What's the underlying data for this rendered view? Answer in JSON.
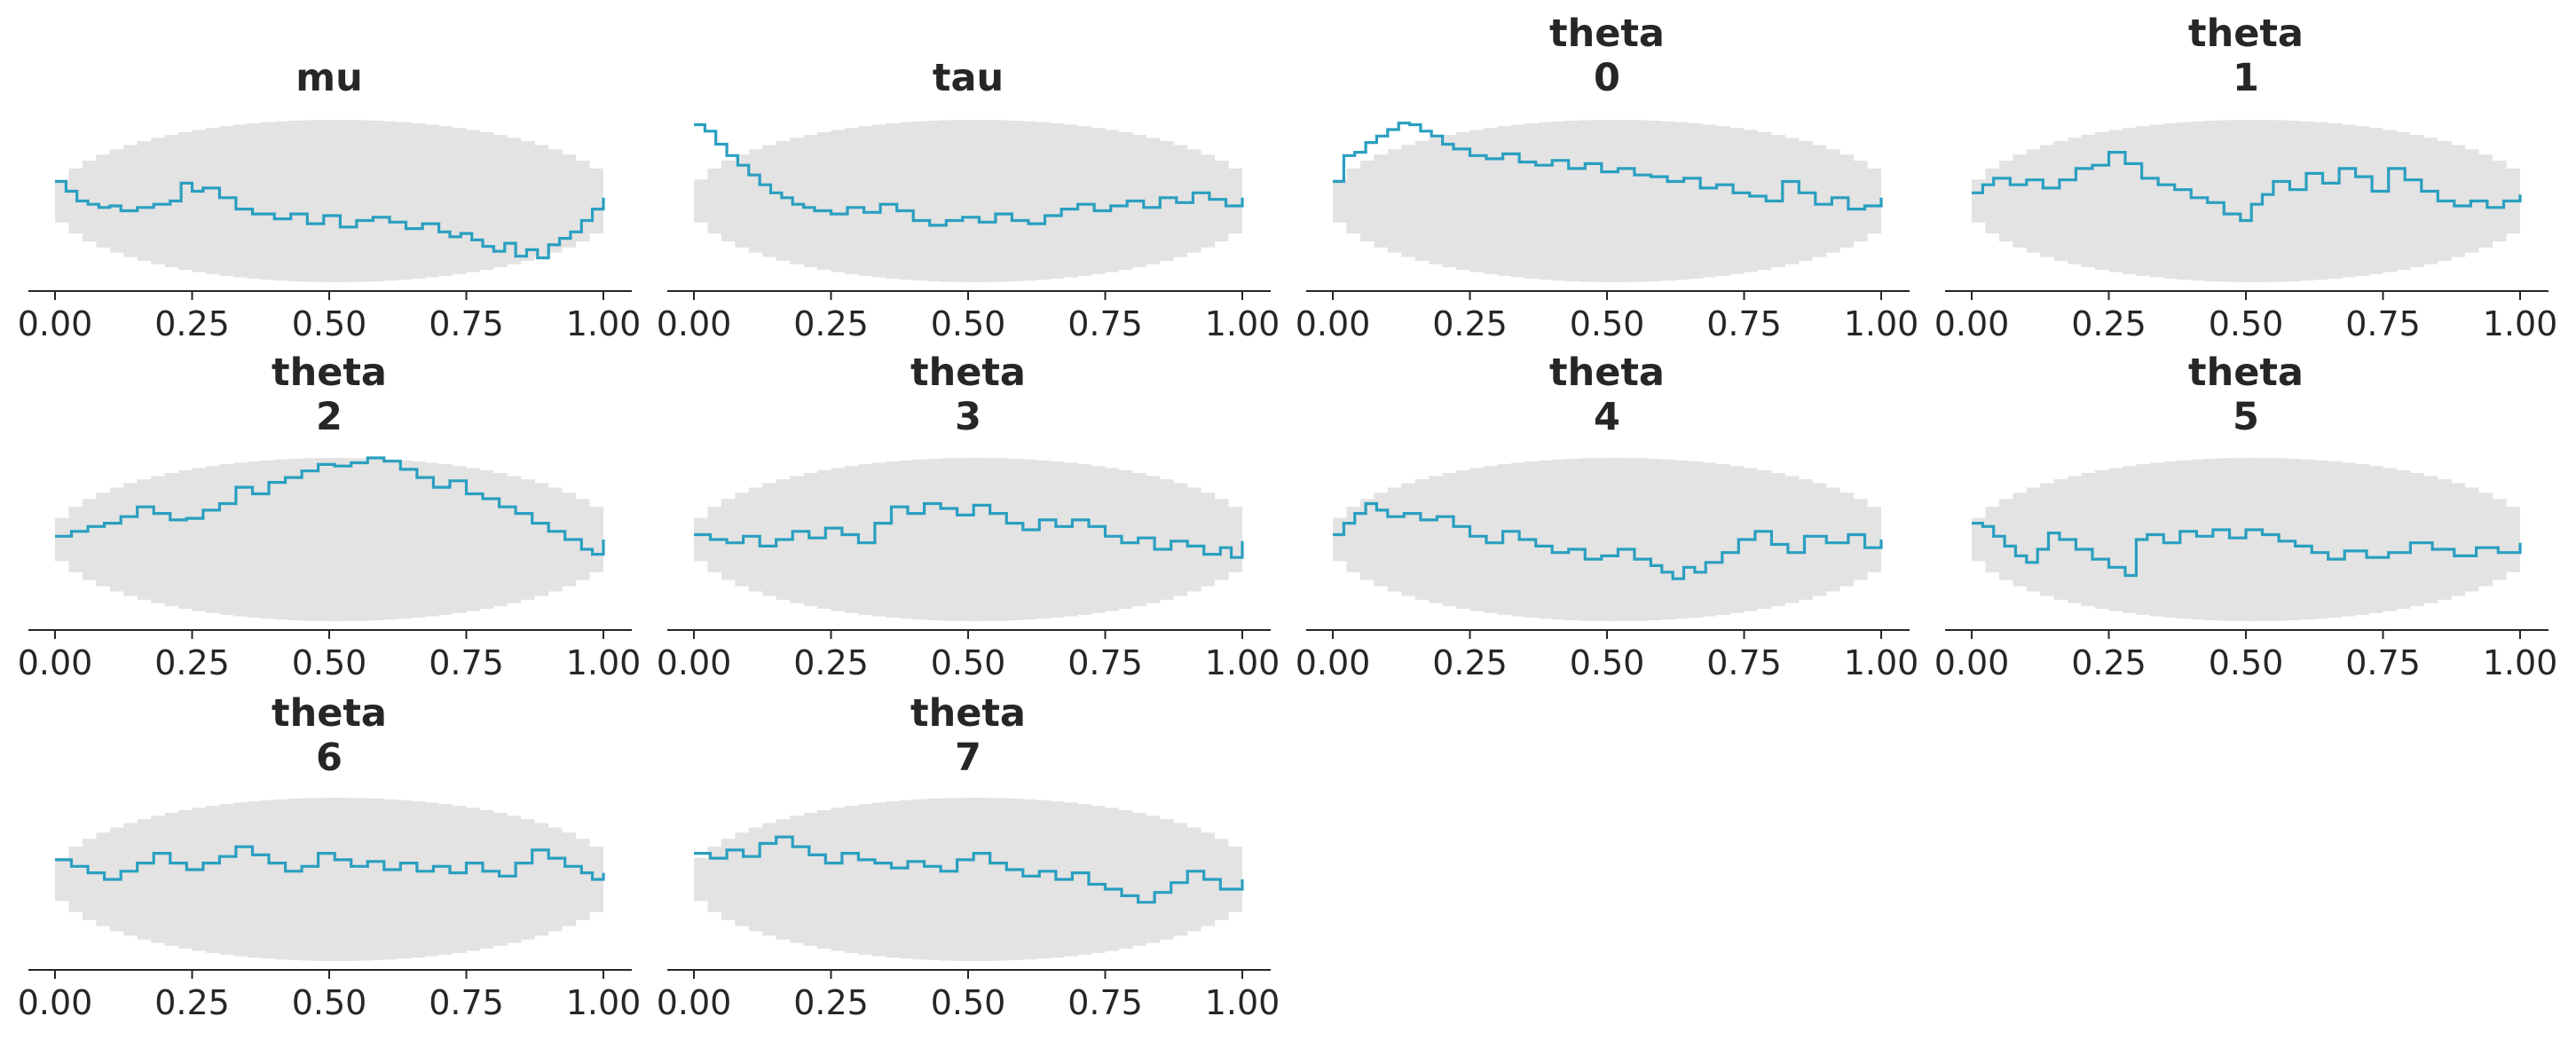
{
  "figure": {
    "background": "#ffffff",
    "band_color": "#e3e3e3",
    "line_color": "#2a9fc0",
    "axis_color": "#262626"
  },
  "chart_data": [
    {
      "type": "line",
      "step": true,
      "title": [
        "mu"
      ],
      "xticks": [
        "0.00",
        "0.25",
        "0.50",
        "0.75",
        "1.00"
      ],
      "xlim": [
        0,
        1
      ],
      "series": [
        {
          "x": [
            0,
            0.02,
            0.04,
            0.06,
            0.08,
            0.1,
            0.12,
            0.15,
            0.18,
            0.21,
            0.23,
            0.25,
            0.27,
            0.3,
            0.33,
            0.36,
            0.4,
            0.43,
            0.46,
            0.49,
            0.52,
            0.55,
            0.58,
            0.61,
            0.64,
            0.67,
            0.7,
            0.72,
            0.74,
            0.76,
            0.78,
            0.8,
            0.82,
            0.84,
            0.86,
            0.88,
            0.9,
            0.92,
            0.94,
            0.96,
            0.98,
            1.0
          ],
          "y": [
            0.62,
            0.56,
            0.5,
            0.48,
            0.46,
            0.47,
            0.44,
            0.46,
            0.48,
            0.5,
            0.61,
            0.56,
            0.58,
            0.52,
            0.45,
            0.42,
            0.39,
            0.42,
            0.36,
            0.41,
            0.34,
            0.38,
            0.4,
            0.37,
            0.33,
            0.36,
            0.31,
            0.28,
            0.3,
            0.26,
            0.22,
            0.19,
            0.24,
            0.16,
            0.2,
            0.15,
            0.23,
            0.27,
            0.31,
            0.38,
            0.45,
            0.52
          ]
        }
      ],
      "band": [
        0,
        1
      ]
    },
    {
      "type": "line",
      "step": true,
      "title": [
        "tau"
      ],
      "xticks": [
        "0.00",
        "0.25",
        "0.50",
        "0.75",
        "1.00"
      ],
      "xlim": [
        0,
        1
      ],
      "series": [
        {
          "x": [
            0,
            0.02,
            0.04,
            0.06,
            0.08,
            0.1,
            0.12,
            0.14,
            0.16,
            0.18,
            0.2,
            0.22,
            0.25,
            0.28,
            0.31,
            0.34,
            0.37,
            0.4,
            0.43,
            0.46,
            0.49,
            0.52,
            0.55,
            0.58,
            0.61,
            0.64,
            0.67,
            0.7,
            0.73,
            0.76,
            0.79,
            0.82,
            0.85,
            0.88,
            0.91,
            0.94,
            0.97,
            1.0
          ],
          "y": [
            0.97,
            0.93,
            0.85,
            0.78,
            0.72,
            0.66,
            0.6,
            0.55,
            0.52,
            0.48,
            0.46,
            0.44,
            0.42,
            0.46,
            0.43,
            0.48,
            0.44,
            0.38,
            0.35,
            0.38,
            0.4,
            0.37,
            0.42,
            0.38,
            0.36,
            0.41,
            0.45,
            0.48,
            0.44,
            0.47,
            0.5,
            0.46,
            0.52,
            0.49,
            0.55,
            0.51,
            0.47,
            0.52
          ]
        }
      ],
      "band": [
        0,
        1
      ]
    },
    {
      "type": "line",
      "step": true,
      "title": [
        "theta",
        "0"
      ],
      "xticks": [
        "0.00",
        "0.25",
        "0.50",
        "0.75",
        "1.00"
      ],
      "xlim": [
        0,
        1
      ],
      "series": [
        {
          "x": [
            0,
            0.02,
            0.04,
            0.06,
            0.08,
            0.1,
            0.12,
            0.14,
            0.16,
            0.18,
            0.2,
            0.22,
            0.25,
            0.28,
            0.31,
            0.34,
            0.37,
            0.4,
            0.43,
            0.46,
            0.49,
            0.52,
            0.55,
            0.58,
            0.61,
            0.64,
            0.67,
            0.7,
            0.73,
            0.76,
            0.79,
            0.82,
            0.85,
            0.88,
            0.91,
            0.94,
            0.97,
            1.0
          ],
          "y": [
            0.62,
            0.78,
            0.8,
            0.86,
            0.9,
            0.94,
            0.98,
            0.97,
            0.93,
            0.9,
            0.85,
            0.82,
            0.78,
            0.76,
            0.79,
            0.74,
            0.72,
            0.75,
            0.7,
            0.73,
            0.68,
            0.7,
            0.66,
            0.65,
            0.62,
            0.64,
            0.58,
            0.6,
            0.55,
            0.53,
            0.5,
            0.62,
            0.55,
            0.48,
            0.52,
            0.45,
            0.47,
            0.52
          ]
        }
      ],
      "band": [
        0,
        1
      ]
    },
    {
      "type": "line",
      "step": true,
      "title": [
        "theta",
        "1"
      ],
      "xticks": [
        "0.00",
        "0.25",
        "0.50",
        "0.75",
        "1.00"
      ],
      "xlim": [
        0,
        1
      ],
      "series": [
        {
          "x": [
            0,
            0.02,
            0.04,
            0.07,
            0.1,
            0.13,
            0.16,
            0.19,
            0.22,
            0.25,
            0.28,
            0.31,
            0.34,
            0.37,
            0.4,
            0.43,
            0.46,
            0.49,
            0.51,
            0.53,
            0.55,
            0.58,
            0.61,
            0.64,
            0.67,
            0.7,
            0.73,
            0.76,
            0.79,
            0.82,
            0.85,
            0.88,
            0.91,
            0.94,
            0.97,
            1.0
          ],
          "y": [
            0.55,
            0.6,
            0.64,
            0.6,
            0.63,
            0.58,
            0.63,
            0.7,
            0.72,
            0.8,
            0.73,
            0.64,
            0.6,
            0.57,
            0.52,
            0.49,
            0.42,
            0.38,
            0.48,
            0.54,
            0.62,
            0.57,
            0.67,
            0.61,
            0.7,
            0.65,
            0.56,
            0.7,
            0.63,
            0.56,
            0.5,
            0.47,
            0.5,
            0.46,
            0.5,
            0.54
          ]
        }
      ],
      "band": [
        0,
        1
      ]
    },
    {
      "type": "line",
      "step": true,
      "title": [
        "theta",
        "2"
      ],
      "xticks": [
        "0.00",
        "0.25",
        "0.50",
        "0.75",
        "1.00"
      ],
      "xlim": [
        0,
        1
      ],
      "series": [
        {
          "x": [
            0,
            0.03,
            0.06,
            0.09,
            0.12,
            0.15,
            0.18,
            0.21,
            0.24,
            0.27,
            0.3,
            0.33,
            0.36,
            0.39,
            0.42,
            0.45,
            0.48,
            0.51,
            0.54,
            0.57,
            0.6,
            0.63,
            0.66,
            0.69,
            0.72,
            0.75,
            0.78,
            0.81,
            0.84,
            0.87,
            0.9,
            0.93,
            0.96,
            0.98,
            1.0
          ],
          "y": [
            0.52,
            0.55,
            0.58,
            0.6,
            0.64,
            0.7,
            0.66,
            0.62,
            0.63,
            0.68,
            0.72,
            0.82,
            0.78,
            0.85,
            0.88,
            0.92,
            0.96,
            0.95,
            0.97,
            1.0,
            0.98,
            0.93,
            0.88,
            0.82,
            0.86,
            0.78,
            0.75,
            0.7,
            0.66,
            0.6,
            0.55,
            0.5,
            0.44,
            0.41,
            0.5
          ]
        }
      ],
      "band": [
        0,
        1
      ]
    },
    {
      "type": "line",
      "step": true,
      "title": [
        "theta",
        "3"
      ],
      "xticks": [
        "0.00",
        "0.25",
        "0.50",
        "0.75",
        "1.00"
      ],
      "xlim": [
        0,
        1
      ],
      "series": [
        {
          "x": [
            0,
            0.03,
            0.06,
            0.09,
            0.12,
            0.15,
            0.18,
            0.21,
            0.24,
            0.27,
            0.3,
            0.33,
            0.36,
            0.39,
            0.42,
            0.45,
            0.48,
            0.51,
            0.54,
            0.57,
            0.6,
            0.63,
            0.66,
            0.69,
            0.72,
            0.75,
            0.78,
            0.81,
            0.84,
            0.87,
            0.9,
            0.93,
            0.96,
            0.98,
            1.0
          ],
          "y": [
            0.53,
            0.5,
            0.48,
            0.52,
            0.46,
            0.5,
            0.55,
            0.51,
            0.57,
            0.53,
            0.48,
            0.6,
            0.7,
            0.66,
            0.72,
            0.69,
            0.65,
            0.71,
            0.66,
            0.6,
            0.56,
            0.62,
            0.58,
            0.62,
            0.58,
            0.52,
            0.48,
            0.51,
            0.44,
            0.49,
            0.46,
            0.41,
            0.45,
            0.39,
            0.49
          ]
        }
      ],
      "band": [
        0,
        1
      ]
    },
    {
      "type": "line",
      "step": true,
      "title": [
        "theta",
        "4"
      ],
      "xticks": [
        "0.00",
        "0.25",
        "0.50",
        "0.75",
        "1.00"
      ],
      "xlim": [
        0,
        1
      ],
      "series": [
        {
          "x": [
            0,
            0.02,
            0.04,
            0.06,
            0.08,
            0.1,
            0.13,
            0.16,
            0.19,
            0.22,
            0.25,
            0.28,
            0.31,
            0.34,
            0.37,
            0.4,
            0.43,
            0.46,
            0.49,
            0.52,
            0.55,
            0.58,
            0.6,
            0.62,
            0.64,
            0.66,
            0.68,
            0.71,
            0.74,
            0.77,
            0.8,
            0.83,
            0.86,
            0.9,
            0.94,
            0.97,
            1.0
          ],
          "y": [
            0.53,
            0.6,
            0.66,
            0.72,
            0.68,
            0.64,
            0.66,
            0.62,
            0.64,
            0.58,
            0.52,
            0.48,
            0.55,
            0.5,
            0.46,
            0.42,
            0.44,
            0.38,
            0.4,
            0.44,
            0.38,
            0.34,
            0.3,
            0.26,
            0.33,
            0.3,
            0.36,
            0.42,
            0.5,
            0.55,
            0.47,
            0.42,
            0.52,
            0.48,
            0.53,
            0.45,
            0.5
          ]
        }
      ],
      "band": [
        0,
        1
      ]
    },
    {
      "type": "line",
      "step": true,
      "title": [
        "theta",
        "5"
      ],
      "xticks": [
        "0.00",
        "0.25",
        "0.50",
        "0.75",
        "1.00"
      ],
      "xlim": [
        0,
        1
      ],
      "series": [
        {
          "x": [
            0,
            0.02,
            0.04,
            0.06,
            0.08,
            0.1,
            0.12,
            0.14,
            0.16,
            0.19,
            0.22,
            0.25,
            0.28,
            0.3,
            0.32,
            0.35,
            0.38,
            0.41,
            0.44,
            0.47,
            0.5,
            0.53,
            0.56,
            0.59,
            0.62,
            0.65,
            0.68,
            0.72,
            0.76,
            0.8,
            0.84,
            0.88,
            0.92,
            0.96,
            1.0
          ],
          "y": [
            0.6,
            0.58,
            0.52,
            0.46,
            0.4,
            0.36,
            0.44,
            0.54,
            0.5,
            0.44,
            0.38,
            0.33,
            0.28,
            0.5,
            0.53,
            0.48,
            0.55,
            0.52,
            0.56,
            0.51,
            0.56,
            0.53,
            0.49,
            0.46,
            0.42,
            0.38,
            0.43,
            0.39,
            0.42,
            0.48,
            0.44,
            0.4,
            0.45,
            0.42,
            0.48
          ]
        }
      ],
      "band": [
        0,
        1
      ]
    },
    {
      "type": "line",
      "step": true,
      "title": [
        "theta",
        "6"
      ],
      "xticks": [
        "0.00",
        "0.25",
        "0.50",
        "0.75",
        "1.00"
      ],
      "xlim": [
        0,
        1
      ],
      "series": [
        {
          "x": [
            0,
            0.03,
            0.06,
            0.09,
            0.12,
            0.15,
            0.18,
            0.21,
            0.24,
            0.27,
            0.3,
            0.33,
            0.36,
            0.39,
            0.42,
            0.45,
            0.48,
            0.51,
            0.54,
            0.57,
            0.6,
            0.63,
            0.66,
            0.69,
            0.72,
            0.75,
            0.78,
            0.81,
            0.84,
            0.87,
            0.9,
            0.93,
            0.96,
            0.98,
            1.0
          ],
          "y": [
            0.62,
            0.58,
            0.54,
            0.5,
            0.55,
            0.6,
            0.66,
            0.6,
            0.56,
            0.6,
            0.64,
            0.7,
            0.65,
            0.6,
            0.55,
            0.58,
            0.66,
            0.62,
            0.58,
            0.61,
            0.56,
            0.6,
            0.55,
            0.58,
            0.54,
            0.6,
            0.55,
            0.52,
            0.6,
            0.68,
            0.63,
            0.58,
            0.54,
            0.5,
            0.54
          ]
        }
      ],
      "band": [
        0,
        1
      ]
    },
    {
      "type": "line",
      "step": true,
      "title": [
        "theta",
        "7"
      ],
      "xticks": [
        "0.00",
        "0.25",
        "0.50",
        "0.75",
        "1.00"
      ],
      "xlim": [
        0,
        1
      ],
      "series": [
        {
          "x": [
            0,
            0.03,
            0.06,
            0.09,
            0.12,
            0.15,
            0.18,
            0.21,
            0.24,
            0.27,
            0.3,
            0.33,
            0.36,
            0.39,
            0.42,
            0.45,
            0.48,
            0.51,
            0.54,
            0.57,
            0.6,
            0.63,
            0.66,
            0.69,
            0.72,
            0.75,
            0.78,
            0.81,
            0.84,
            0.87,
            0.9,
            0.93,
            0.96,
            1.0
          ],
          "y": [
            0.66,
            0.63,
            0.68,
            0.64,
            0.72,
            0.76,
            0.7,
            0.65,
            0.6,
            0.66,
            0.62,
            0.6,
            0.57,
            0.61,
            0.58,
            0.55,
            0.62,
            0.66,
            0.6,
            0.56,
            0.52,
            0.55,
            0.5,
            0.54,
            0.47,
            0.44,
            0.4,
            0.36,
            0.42,
            0.48,
            0.55,
            0.5,
            0.44,
            0.5
          ]
        }
      ],
      "band": [
        0,
        1
      ]
    }
  ]
}
